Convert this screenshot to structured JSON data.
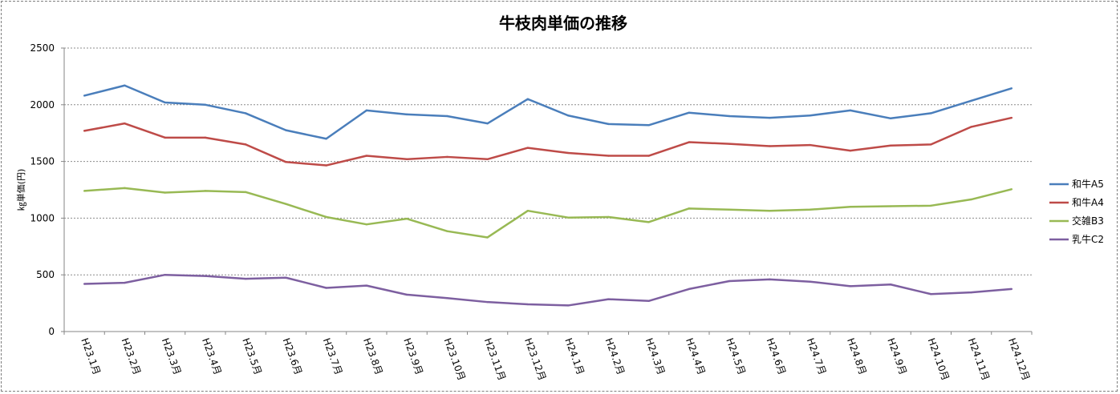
{
  "chart_data": {
    "type": "line",
    "title": "牛枝肉単価の推移",
    "ylabel": "㎏単価(円)",
    "xlabel": "",
    "ylim": [
      0,
      2500
    ],
    "yticks": [
      0,
      500,
      1000,
      1500,
      2000,
      2500
    ],
    "grid": "horizontal dashed",
    "legend_position": "right",
    "categories": [
      "H23.1月",
      "H23.2月",
      "H23.3月",
      "H23.4月",
      "H23.5月",
      "H23.6月",
      "H23.7月",
      "H23.8月",
      "H23.9月",
      "H23.10月",
      "H23.11月",
      "H23.12月",
      "H24.1月",
      "H24.2月",
      "H24.3月",
      "H24.4月",
      "H24.5月",
      "H24.6月",
      "H24.7月",
      "H24.8月",
      "H24.9月",
      "H24.10月",
      "H24.11月",
      "H24.12月"
    ],
    "series": [
      {
        "name": "和牛A5",
        "color": "#4a7ebb",
        "values": [
          2080,
          2170,
          2020,
          2000,
          1925,
          1775,
          1700,
          1950,
          1915,
          1900,
          1835,
          2050,
          1905,
          1830,
          1820,
          1930,
          1900,
          1885,
          1905,
          1950,
          1880,
          1925,
          2035,
          2145
        ]
      },
      {
        "name": "和牛A4",
        "color": "#be4b48",
        "values": [
          1770,
          1835,
          1710,
          1710,
          1650,
          1495,
          1465,
          1550,
          1520,
          1540,
          1520,
          1620,
          1575,
          1550,
          1550,
          1670,
          1655,
          1635,
          1645,
          1595,
          1640,
          1650,
          1805,
          1885
        ]
      },
      {
        "name": "交雑B3",
        "color": "#98b954",
        "values": [
          1240,
          1265,
          1225,
          1240,
          1230,
          1125,
          1010,
          945,
          995,
          885,
          830,
          1065,
          1005,
          1010,
          965,
          1085,
          1075,
          1065,
          1075,
          1100,
          1105,
          1110,
          1165,
          1255
        ]
      },
      {
        "name": "乳牛C2",
        "color": "#7d5fa0",
        "values": [
          420,
          430,
          500,
          490,
          465,
          475,
          385,
          405,
          325,
          295,
          260,
          240,
          230,
          285,
          270,
          375,
          445,
          460,
          440,
          400,
          415,
          330,
          345,
          375
        ]
      }
    ]
  }
}
